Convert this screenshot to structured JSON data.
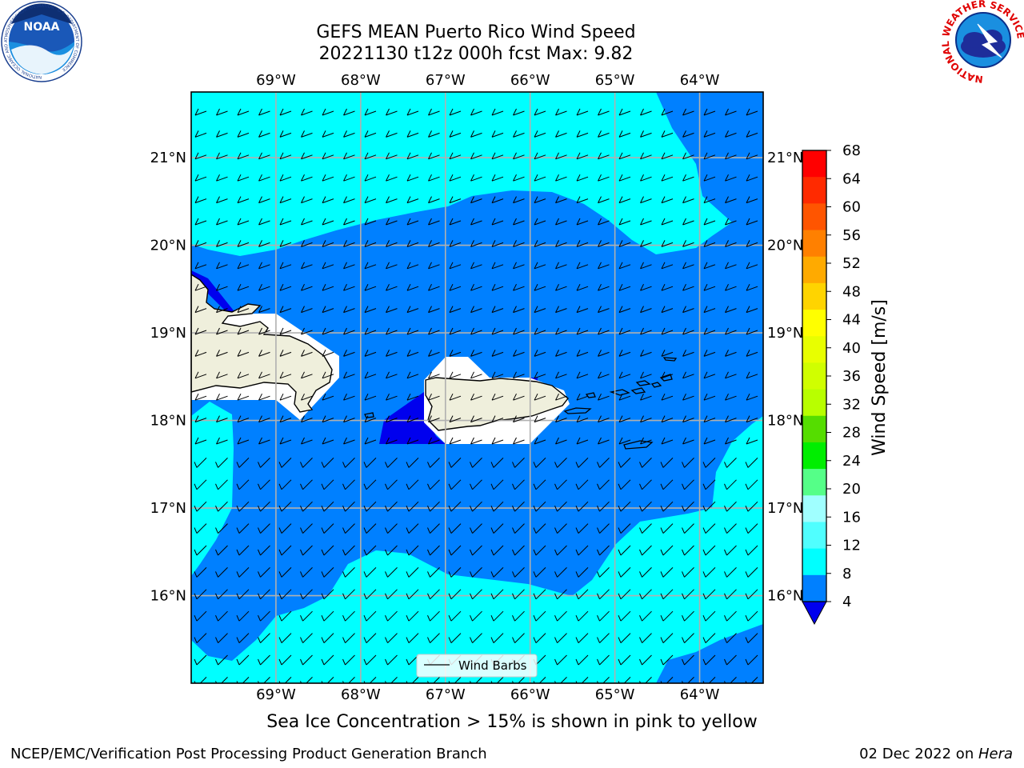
{
  "title": {
    "line1": "GEFS MEAN Puerto Rico Wind Speed",
    "line2": "20221130 t12z 000h fcst   Max: 9.82"
  },
  "logos": {
    "left": {
      "icon": "noaa-logo",
      "text": "NOAA",
      "ring_text": "NATIONAL OCEANIC AND ATMOSPHERIC ADMINISTRATION · U.S. DEPARTMENT OF COMMERCE"
    },
    "right": {
      "icon": "nws-logo",
      "ring_text": "NATIONAL WEATHER SERVICE"
    }
  },
  "map": {
    "lon_labels": [
      "69°W",
      "68°W",
      "67°W",
      "66°W",
      "65°W",
      "64°W"
    ],
    "lat_labels": [
      "21°N",
      "20°N",
      "19°N",
      "18°N",
      "17°N",
      "16°N"
    ],
    "lon_values": [
      -69,
      -68,
      -67,
      -66,
      -65,
      -64
    ],
    "lat_values": [
      21,
      20,
      19,
      18,
      17,
      16
    ],
    "extent": {
      "lon_min": -70,
      "lon_max": -63.25,
      "lat_min": 15,
      "lat_max": 21.75
    },
    "grid": true,
    "legend": {
      "label": "Wind Barbs",
      "placement": "bottom-center"
    }
  },
  "colorbar": {
    "label": "Wind Speed [m/s]",
    "ticks": [
      "68",
      "64",
      "60",
      "56",
      "52",
      "48",
      "44",
      "40",
      "36",
      "32",
      "28",
      "24",
      "20",
      "16",
      "12",
      "8",
      "4"
    ],
    "colors_top_to_bottom": [
      "#ff0000",
      "#ff2a00",
      "#ff5500",
      "#ff8000",
      "#ffaa00",
      "#ffd400",
      "#ffff00",
      "#e8ff00",
      "#d0ff00",
      "#b8ff00",
      "#55dd00",
      "#00ee00",
      "#55ff88",
      "#a0ffff",
      "#50ffff",
      "#00ffff",
      "#0080ff"
    ],
    "under_color": "#0000ee"
  },
  "colors": {
    "cyan": "#00ffff",
    "blue": "#0080ff",
    "dark_blue": "#0000ee",
    "land": "#efefdc"
  },
  "caption": "Sea Ice Concentration > 15% is shown in pink to yellow",
  "footer": {
    "left": "NCEP/EMC/Verification Post Processing Product Generation Branch",
    "right_prefix": "02 Dec 2022 on ",
    "right_machine": "Hera"
  }
}
